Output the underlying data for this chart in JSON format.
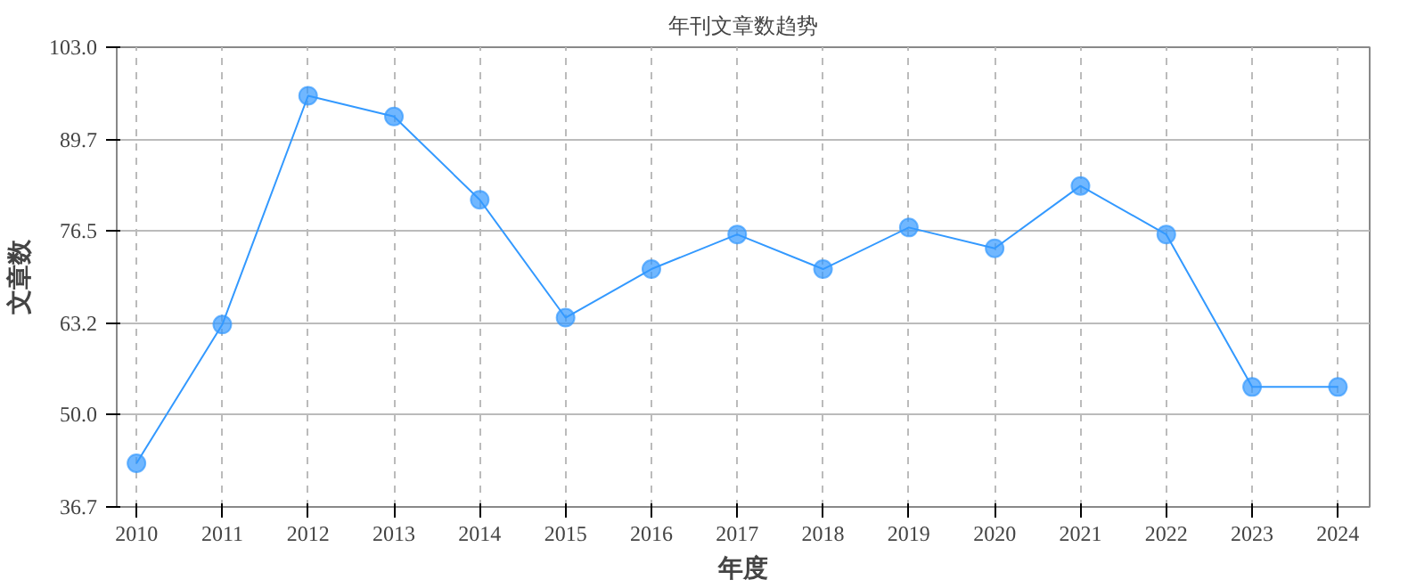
{
  "chart_data": {
    "type": "line",
    "title": "年刊文章数趋势",
    "xlabel": "年度",
    "ylabel": "文章数",
    "categories": [
      "2010",
      "2011",
      "2012",
      "2013",
      "2014",
      "2015",
      "2016",
      "2017",
      "2018",
      "2019",
      "2020",
      "2021",
      "2022",
      "2023",
      "2024"
    ],
    "series": [
      {
        "color": "#3399ff",
        "values": [
          43,
          63,
          96,
          93,
          81,
          64,
          71,
          76,
          71,
          77,
          74,
          83,
          76,
          54,
          54
        ]
      }
    ],
    "ylim": [
      36.7,
      103.0
    ],
    "yticks": [
      {
        "value": 36.7,
        "label": "36.7"
      },
      {
        "value": 50.0,
        "label": "50.0"
      },
      {
        "value": 63.2,
        "label": "63.2"
      },
      {
        "value": 76.5,
        "label": "76.5"
      },
      {
        "value": 89.7,
        "label": "89.7"
      },
      {
        "value": 103.0,
        "label": "103.0"
      }
    ],
    "grid": true,
    "marker": "circle",
    "line_style": "solid"
  }
}
